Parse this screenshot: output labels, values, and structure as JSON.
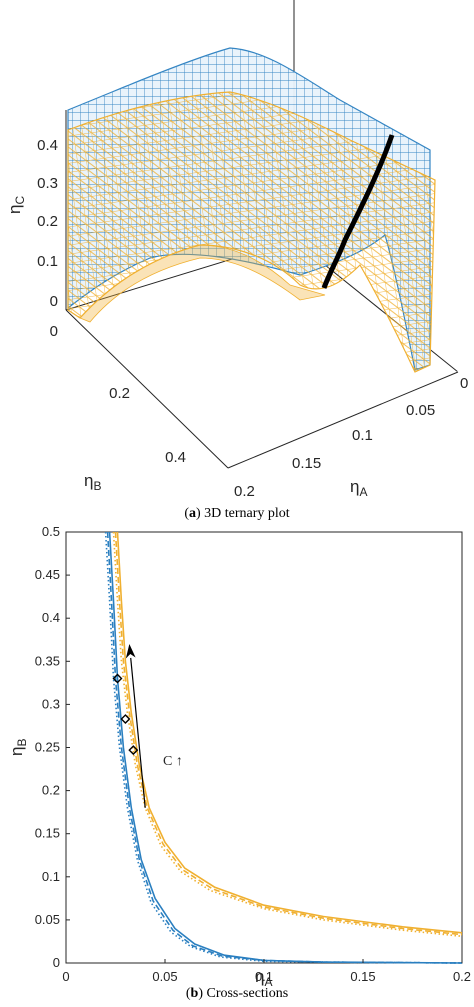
{
  "figure_a": {
    "caption_label": "a",
    "caption_text": "3D ternary plot",
    "axis_label_c": "η",
    "axis_sub_c": "C",
    "axis_label_b": "η",
    "axis_sub_b": "B",
    "axis_label_a": "η",
    "axis_sub_a": "A",
    "c_ticks": [
      "0",
      "0.1",
      "0.2",
      "0.3",
      "0.4"
    ],
    "b_ticks": [
      "0",
      "0.2",
      "0.4"
    ],
    "a_ticks": [
      "0",
      "0.05",
      "0.1",
      "0.15",
      "0.2"
    ]
  },
  "figure_b": {
    "caption_label": "b",
    "caption_text": "Cross-sections",
    "annotation": "C ↑"
  },
  "colors": {
    "blue": "#2a7fc0",
    "orange": "#f0b030",
    "black": "#000000",
    "axis": "#262626"
  },
  "chart_data": [
    {
      "type": "surface",
      "panel": "a",
      "xlabel": "ηA",
      "ylabel": "ηB",
      "zlabel": "ηC",
      "xlim": [
        0,
        0.2
      ],
      "ylim": [
        0,
        0.5
      ],
      "zlim": [
        0,
        0.45
      ],
      "series": [
        {
          "color": "blue",
          "style": "mesh"
        },
        {
          "color": "orange",
          "style": "mesh"
        },
        {
          "color": "black",
          "style": "intersection-curve"
        }
      ]
    },
    {
      "type": "line",
      "panel": "b",
      "xlabel": "ηA",
      "ylabel": "ηB",
      "xlim": [
        0,
        0.2
      ],
      "ylim": [
        0,
        0.5
      ],
      "xticks": [
        "0",
        "0.05",
        "0.1",
        "0.15",
        "0.2"
      ],
      "yticks": [
        "0",
        "0.05",
        "0.1",
        "0.15",
        "0.2",
        "0.25",
        "0.3",
        "0.35",
        "0.4",
        "0.45",
        "0.5"
      ],
      "grid": false,
      "series": [
        {
          "color": "orange",
          "dash": "solid",
          "x": [
            0.026,
            0.028,
            0.03,
            0.033,
            0.037,
            0.042,
            0.05,
            0.06,
            0.075,
            0.1,
            0.13,
            0.17,
            0.2
          ],
          "y": [
            0.5,
            0.42,
            0.35,
            0.29,
            0.23,
            0.18,
            0.14,
            0.11,
            0.088,
            0.067,
            0.054,
            0.042,
            0.035
          ]
        },
        {
          "color": "orange",
          "dash": "dash",
          "x": [
            0.025,
            0.027,
            0.029,
            0.032,
            0.036,
            0.041,
            0.049,
            0.059,
            0.074,
            0.1,
            0.13,
            0.17,
            0.2
          ],
          "y": [
            0.5,
            0.42,
            0.35,
            0.29,
            0.23,
            0.18,
            0.138,
            0.108,
            0.086,
            0.065,
            0.052,
            0.04,
            0.033
          ]
        },
        {
          "color": "orange",
          "dash": "dot",
          "x": [
            0.024,
            0.026,
            0.028,
            0.031,
            0.035,
            0.04,
            0.048,
            0.058,
            0.073,
            0.1,
            0.13,
            0.17,
            0.2
          ],
          "y": [
            0.5,
            0.42,
            0.35,
            0.29,
            0.23,
            0.18,
            0.136,
            0.106,
            0.084,
            0.063,
            0.05,
            0.038,
            0.031
          ]
        },
        {
          "color": "blue",
          "dash": "solid",
          "x": [
            0.022,
            0.024,
            0.026,
            0.029,
            0.033,
            0.038,
            0.045,
            0.055,
            0.065,
            0.08,
            0.1,
            0.13,
            0.2
          ],
          "y": [
            0.5,
            0.42,
            0.33,
            0.25,
            0.18,
            0.12,
            0.075,
            0.04,
            0.022,
            0.009,
            0.003,
            0.001,
            0.0
          ]
        },
        {
          "color": "blue",
          "dash": "dash",
          "x": [
            0.021,
            0.023,
            0.025,
            0.028,
            0.032,
            0.037,
            0.044,
            0.054,
            0.064,
            0.079,
            0.1,
            0.13,
            0.2
          ],
          "y": [
            0.5,
            0.42,
            0.33,
            0.25,
            0.18,
            0.12,
            0.072,
            0.038,
            0.02,
            0.008,
            0.003,
            0.001,
            0.0
          ]
        },
        {
          "color": "blue",
          "dash": "dot",
          "x": [
            0.02,
            0.022,
            0.024,
            0.027,
            0.031,
            0.036,
            0.043,
            0.053,
            0.063,
            0.078,
            0.1,
            0.13,
            0.2
          ],
          "y": [
            0.5,
            0.42,
            0.33,
            0.25,
            0.18,
            0.12,
            0.07,
            0.036,
            0.019,
            0.007,
            0.002,
            0.001,
            0.0
          ]
        }
      ],
      "markers": {
        "shape": "diamond",
        "x": [
          0.026,
          0.03,
          0.034
        ],
        "y": [
          0.33,
          0.283,
          0.247
        ]
      },
      "arrow": {
        "from": [
          0.04,
          0.18
        ],
        "to": [
          0.032,
          0.37
        ]
      }
    }
  ]
}
